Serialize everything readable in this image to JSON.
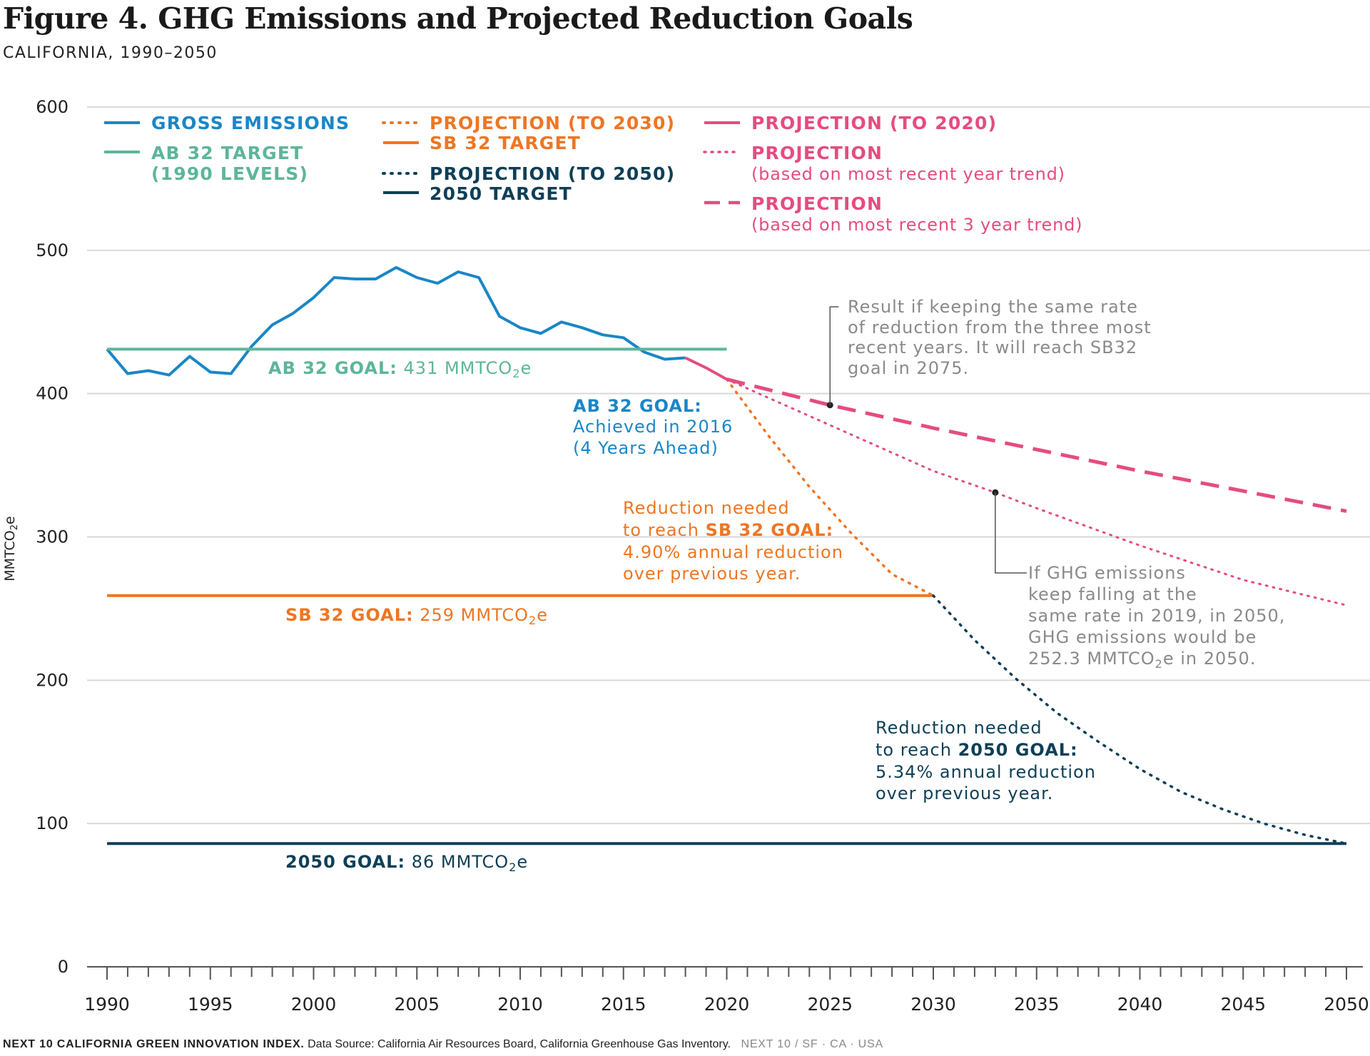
{
  "header": {
    "title": "Figure 4. GHG Emissions and Projected Reduction Goals",
    "subtitle": "CALIFORNIA, 1990–2050"
  },
  "footer": {
    "brand": "NEXT 10 CALIFORNIA GREEN INNOVATION INDEX.",
    "source": "Data Source: California Air Resources Board, California Greenhouse Gas Inventory.",
    "tag": "NEXT 10  /  SF · CA · USA"
  },
  "colors": {
    "gross": "#1a86c7",
    "ab32": "#5db59a",
    "sb32": "#ee7623",
    "target2050": "#0e3f57",
    "pink": "#e54c7f",
    "gray_note": "#8a8a8a",
    "grid": "#d9d9d9"
  },
  "legend": {
    "gross": "GROSS EMISSIONS",
    "ab32_line1": "AB 32 TARGET",
    "ab32_line2": "(1990 LEVELS)",
    "proj2030": "PROJECTION (TO 2030)",
    "sb32": "SB 32 TARGET",
    "proj2050": "PROJECTION (TO 2050)",
    "target2050": "2050 TARGET",
    "proj2020": "PROJECTION (TO 2020)",
    "proj_recent_line1": "PROJECTION",
    "proj_recent_line2": "(based on most recent year trend)",
    "proj_3yr_line1": "PROJECTION",
    "proj_3yr_line2": "(based on most recent 3 year trend)"
  },
  "annotations": {
    "ab32_goal_bold": "AB 32 GOAL:",
    "ab32_goal_value": " 431 MMTCO",
    "ab32_goal_sub": "2",
    "ab32_goal_unit": "e",
    "sb32_goal_bold": "SB 32 GOAL:",
    "sb32_goal_value": " 259 MMTCO",
    "sb32_goal_sub": "2",
    "sb32_goal_unit": "e",
    "goal2050_bold": "2050 GOAL:",
    "goal2050_value": " 86 MMTCO",
    "goal2050_sub": "2",
    "goal2050_unit": "e",
    "achieved_line1": "AB 32 GOAL:",
    "achieved_line2": "Achieved in 2016",
    "achieved_line3": "(4 Years Ahead)",
    "sb32_need_line1": "Reduction needed",
    "sb32_need_line2a": "to reach ",
    "sb32_need_line2b": "SB 32 GOAL:",
    "sb32_need_line3": "4.90% annual reduction",
    "sb32_need_line4": "over previous year.",
    "need2050_line1": "Reduction needed",
    "need2050_line2a": "to reach ",
    "need2050_line2b": "2050 GOAL:",
    "need2050_line3": "5.34% annual reduction",
    "need2050_line4": "over previous year.",
    "note3yr_line1": "Result if keeping the same rate",
    "note3yr_line2": "of reduction from the three most",
    "note3yr_line3": "recent years. It will reach SB32",
    "note3yr_line4": "goal in 2075.",
    "note1yr_line1": "If GHG emissions",
    "note1yr_line2": "keep falling at the",
    "note1yr_line3": "same rate in 2019, in 2050,",
    "note1yr_line4": "GHG emissions would be",
    "note1yr_line5a": "252.3 MMTCO",
    "note1yr_line5sub": "2",
    "note1yr_line5b": "e in 2050."
  },
  "chart_data": {
    "type": "line",
    "title": "Figure 4. GHG Emissions and Projected Reduction Goals",
    "subtitle": "CALIFORNIA, 1990–2050",
    "ylabel": "MMTCO2e",
    "xlim": [
      1990,
      2050
    ],
    "ylim": [
      0,
      600
    ],
    "x_ticks": [
      1990,
      1995,
      2000,
      2005,
      2010,
      2015,
      2020,
      2025,
      2030,
      2035,
      2040,
      2045,
      2050
    ],
    "y_ticks": [
      0,
      100,
      200,
      300,
      400,
      500,
      600
    ],
    "grid": true,
    "series": [
      {
        "name": "GROSS EMISSIONS",
        "x": [
          1990,
          1991,
          1992,
          1993,
          1994,
          1995,
          1996,
          1997,
          1998,
          1999,
          2000,
          2001,
          2002,
          2003,
          2004,
          2005,
          2006,
          2007,
          2008,
          2009,
          2010,
          2011,
          2012,
          2013,
          2014,
          2015,
          2016,
          2017,
          2018
        ],
        "y": [
          431,
          414,
          416,
          413,
          426,
          415,
          414,
          433,
          448,
          456,
          467,
          481,
          480,
          480,
          488,
          481,
          477,
          485,
          481,
          454,
          446,
          442,
          450,
          446,
          441,
          439,
          429,
          424,
          425
        ]
      },
      {
        "name": "AB 32 TARGET (1990 LEVELS)",
        "x": [
          1990,
          2020
        ],
        "y": [
          431,
          431
        ]
      },
      {
        "name": "SB 32 TARGET",
        "x": [
          1990,
          2030
        ],
        "y": [
          259,
          259
        ]
      },
      {
        "name": "2050 TARGET",
        "x": [
          1990,
          2050
        ],
        "y": [
          86,
          86
        ]
      },
      {
        "name": "PROJECTION (TO 2020)",
        "x": [
          2018,
          2019,
          2020
        ],
        "y": [
          425,
          418,
          410
        ]
      },
      {
        "name": "PROJECTION (TO 2030)",
        "x": [
          2020,
          2022,
          2024,
          2026,
          2028,
          2030
        ],
        "y": [
          410,
          371,
          335,
          303,
          274,
          259
        ]
      },
      {
        "name": "PROJECTION (TO 2050)",
        "x": [
          2030,
          2032,
          2034,
          2036,
          2038,
          2040,
          2042,
          2044,
          2046,
          2048,
          2050
        ],
        "y": [
          259,
          228,
          201,
          177,
          157,
          138,
          122,
          110,
          100,
          92,
          86
        ]
      },
      {
        "name": "PROJECTION (based on most recent year trend)",
        "x": [
          2020,
          2025,
          2030,
          2033,
          2035,
          2040,
          2045,
          2050
        ],
        "y": [
          410,
          378,
          346,
          331,
          320,
          294,
          270,
          252.3
        ]
      },
      {
        "name": "PROJECTION (based on most recent 3 year trend)",
        "x": [
          2020,
          2025,
          2030,
          2035,
          2040,
          2045,
          2050
        ],
        "y": [
          410,
          392,
          376,
          361,
          346,
          332,
          318
        ]
      }
    ]
  }
}
